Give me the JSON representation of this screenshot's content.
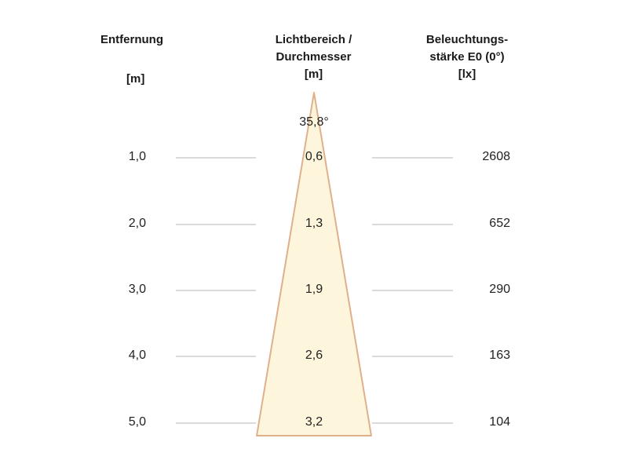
{
  "headers": {
    "distance": {
      "line1": "Entfernung",
      "unit": "[m]"
    },
    "beam": {
      "line1": "Lichtbereich /",
      "line2": "Durchmesser",
      "unit": "[m]"
    },
    "illuminance": {
      "line1": "Beleuchtungs-",
      "line2": "stärke E0 (0°)",
      "unit": "[lx]"
    }
  },
  "beam_angle": "35,8°",
  "rows": [
    {
      "distance": "1,0",
      "diameter": "0,6",
      "lux": "2608"
    },
    {
      "distance": "2,0",
      "diameter": "1,3",
      "lux": "652"
    },
    {
      "distance": "3,0",
      "diameter": "1,9",
      "lux": "290"
    },
    {
      "distance": "4,0",
      "diameter": "2,6",
      "lux": "163"
    },
    {
      "distance": "5,0",
      "diameter": "3,2",
      "lux": "104"
    }
  ],
  "colors": {
    "cone_fill": "#fdf6dc",
    "cone_edge": "#e0b08a",
    "guide_line": "#b5b5b5"
  }
}
